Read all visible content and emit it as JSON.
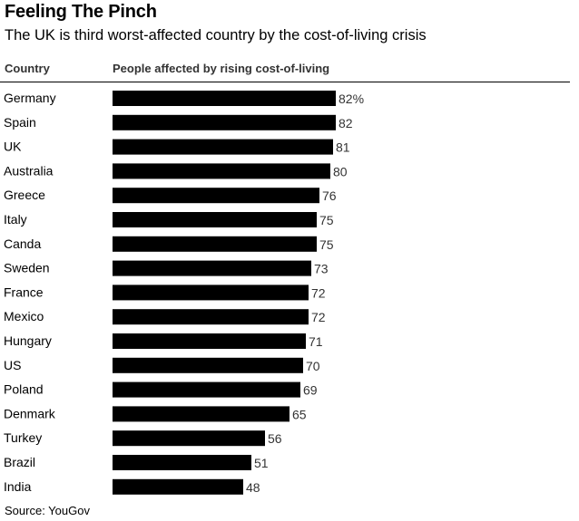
{
  "chart_data": {
    "type": "bar",
    "orientation": "horizontal",
    "title": "Feeling The Pinch",
    "subtitle": "The UK is third worst-affected country by the cost-of-living crisis",
    "column_headers": {
      "category": "Country",
      "value": "People affected by rising cost-of-living"
    },
    "categories": [
      "Germany",
      "Spain",
      "UK",
      "Australia",
      "Greece",
      "Italy",
      "Canda",
      "Sweden",
      "France",
      "Mexico",
      "Hungary",
      "US",
      "Poland",
      "Denmark",
      "Turkey",
      "Brazil",
      "India"
    ],
    "values": [
      82,
      82,
      81,
      80,
      76,
      75,
      75,
      73,
      72,
      72,
      71,
      70,
      69,
      65,
      56,
      51,
      48
    ],
    "value_labels": [
      "82%",
      "82",
      "81",
      "80",
      "76",
      "75",
      "75",
      "73",
      "72",
      "72",
      "71",
      "70",
      "69",
      "65",
      "56",
      "51",
      "48"
    ],
    "xlim": [
      0,
      100
    ],
    "bar_color": "#000000",
    "source": "Source: YouGov"
  }
}
